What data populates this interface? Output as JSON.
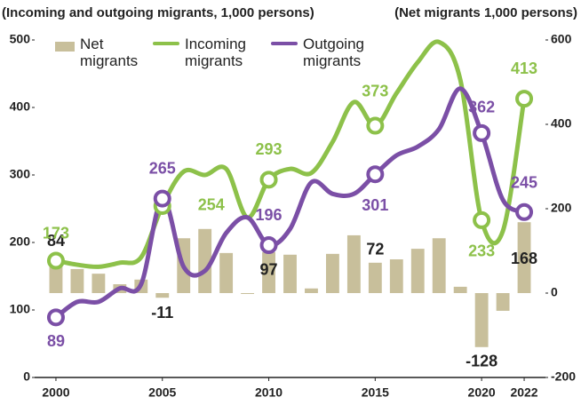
{
  "chart_data": {
    "type": "combo",
    "left_axis_title": "(Incoming and outgoing migrants, 1,000 persons)",
    "right_axis_title": "(Net migrants 1,000 persons)",
    "x": [
      2000,
      2001,
      2002,
      2003,
      2004,
      2005,
      2006,
      2007,
      2008,
      2009,
      2010,
      2011,
      2012,
      2013,
      2014,
      2015,
      2016,
      2017,
      2018,
      2019,
      2020,
      2021,
      2022
    ],
    "xlim": [
      1999,
      2023
    ],
    "xticks": [
      2000,
      2005,
      2010,
      2015,
      2020,
      2022
    ],
    "ylim": [
      0,
      500
    ],
    "yticks": [
      0,
      100,
      200,
      300,
      400,
      500
    ],
    "y2lim": [
      -200,
      600
    ],
    "y2ticks": [
      -200,
      0,
      200,
      400,
      600
    ],
    "label_indices": [
      0,
      5,
      10,
      15,
      20,
      22
    ],
    "series": [
      {
        "name": "Net migrants",
        "type": "bar",
        "axis": "y2",
        "color": "#c8bf9b",
        "values": [
          84,
          57,
          46,
          21,
          32,
          -11,
          130,
          152,
          95,
          -2,
          97,
          91,
          11,
          93,
          137,
          72,
          80,
          105,
          130,
          15,
          -128,
          -42,
          168
        ]
      },
      {
        "name": "Incoming migrants",
        "type": "line",
        "color": "#8dc14a",
        "values": [
          173,
          167,
          164,
          170,
          178,
          254,
          305,
          300,
          309,
          237,
          293,
          309,
          303,
          349,
          408,
          373,
          421,
          467,
          497,
          441,
          233,
          217,
          413
        ]
      },
      {
        "name": "Outgoing migrants",
        "type": "line",
        "color": "#7b4fa6",
        "values": [
          89,
          112,
          112,
          132,
          138,
          265,
          164,
          158,
          214,
          237,
          196,
          220,
          289,
          272,
          272,
          301,
          329,
          342,
          368,
          428,
          362,
          263,
          245
        ]
      }
    ]
  }
}
